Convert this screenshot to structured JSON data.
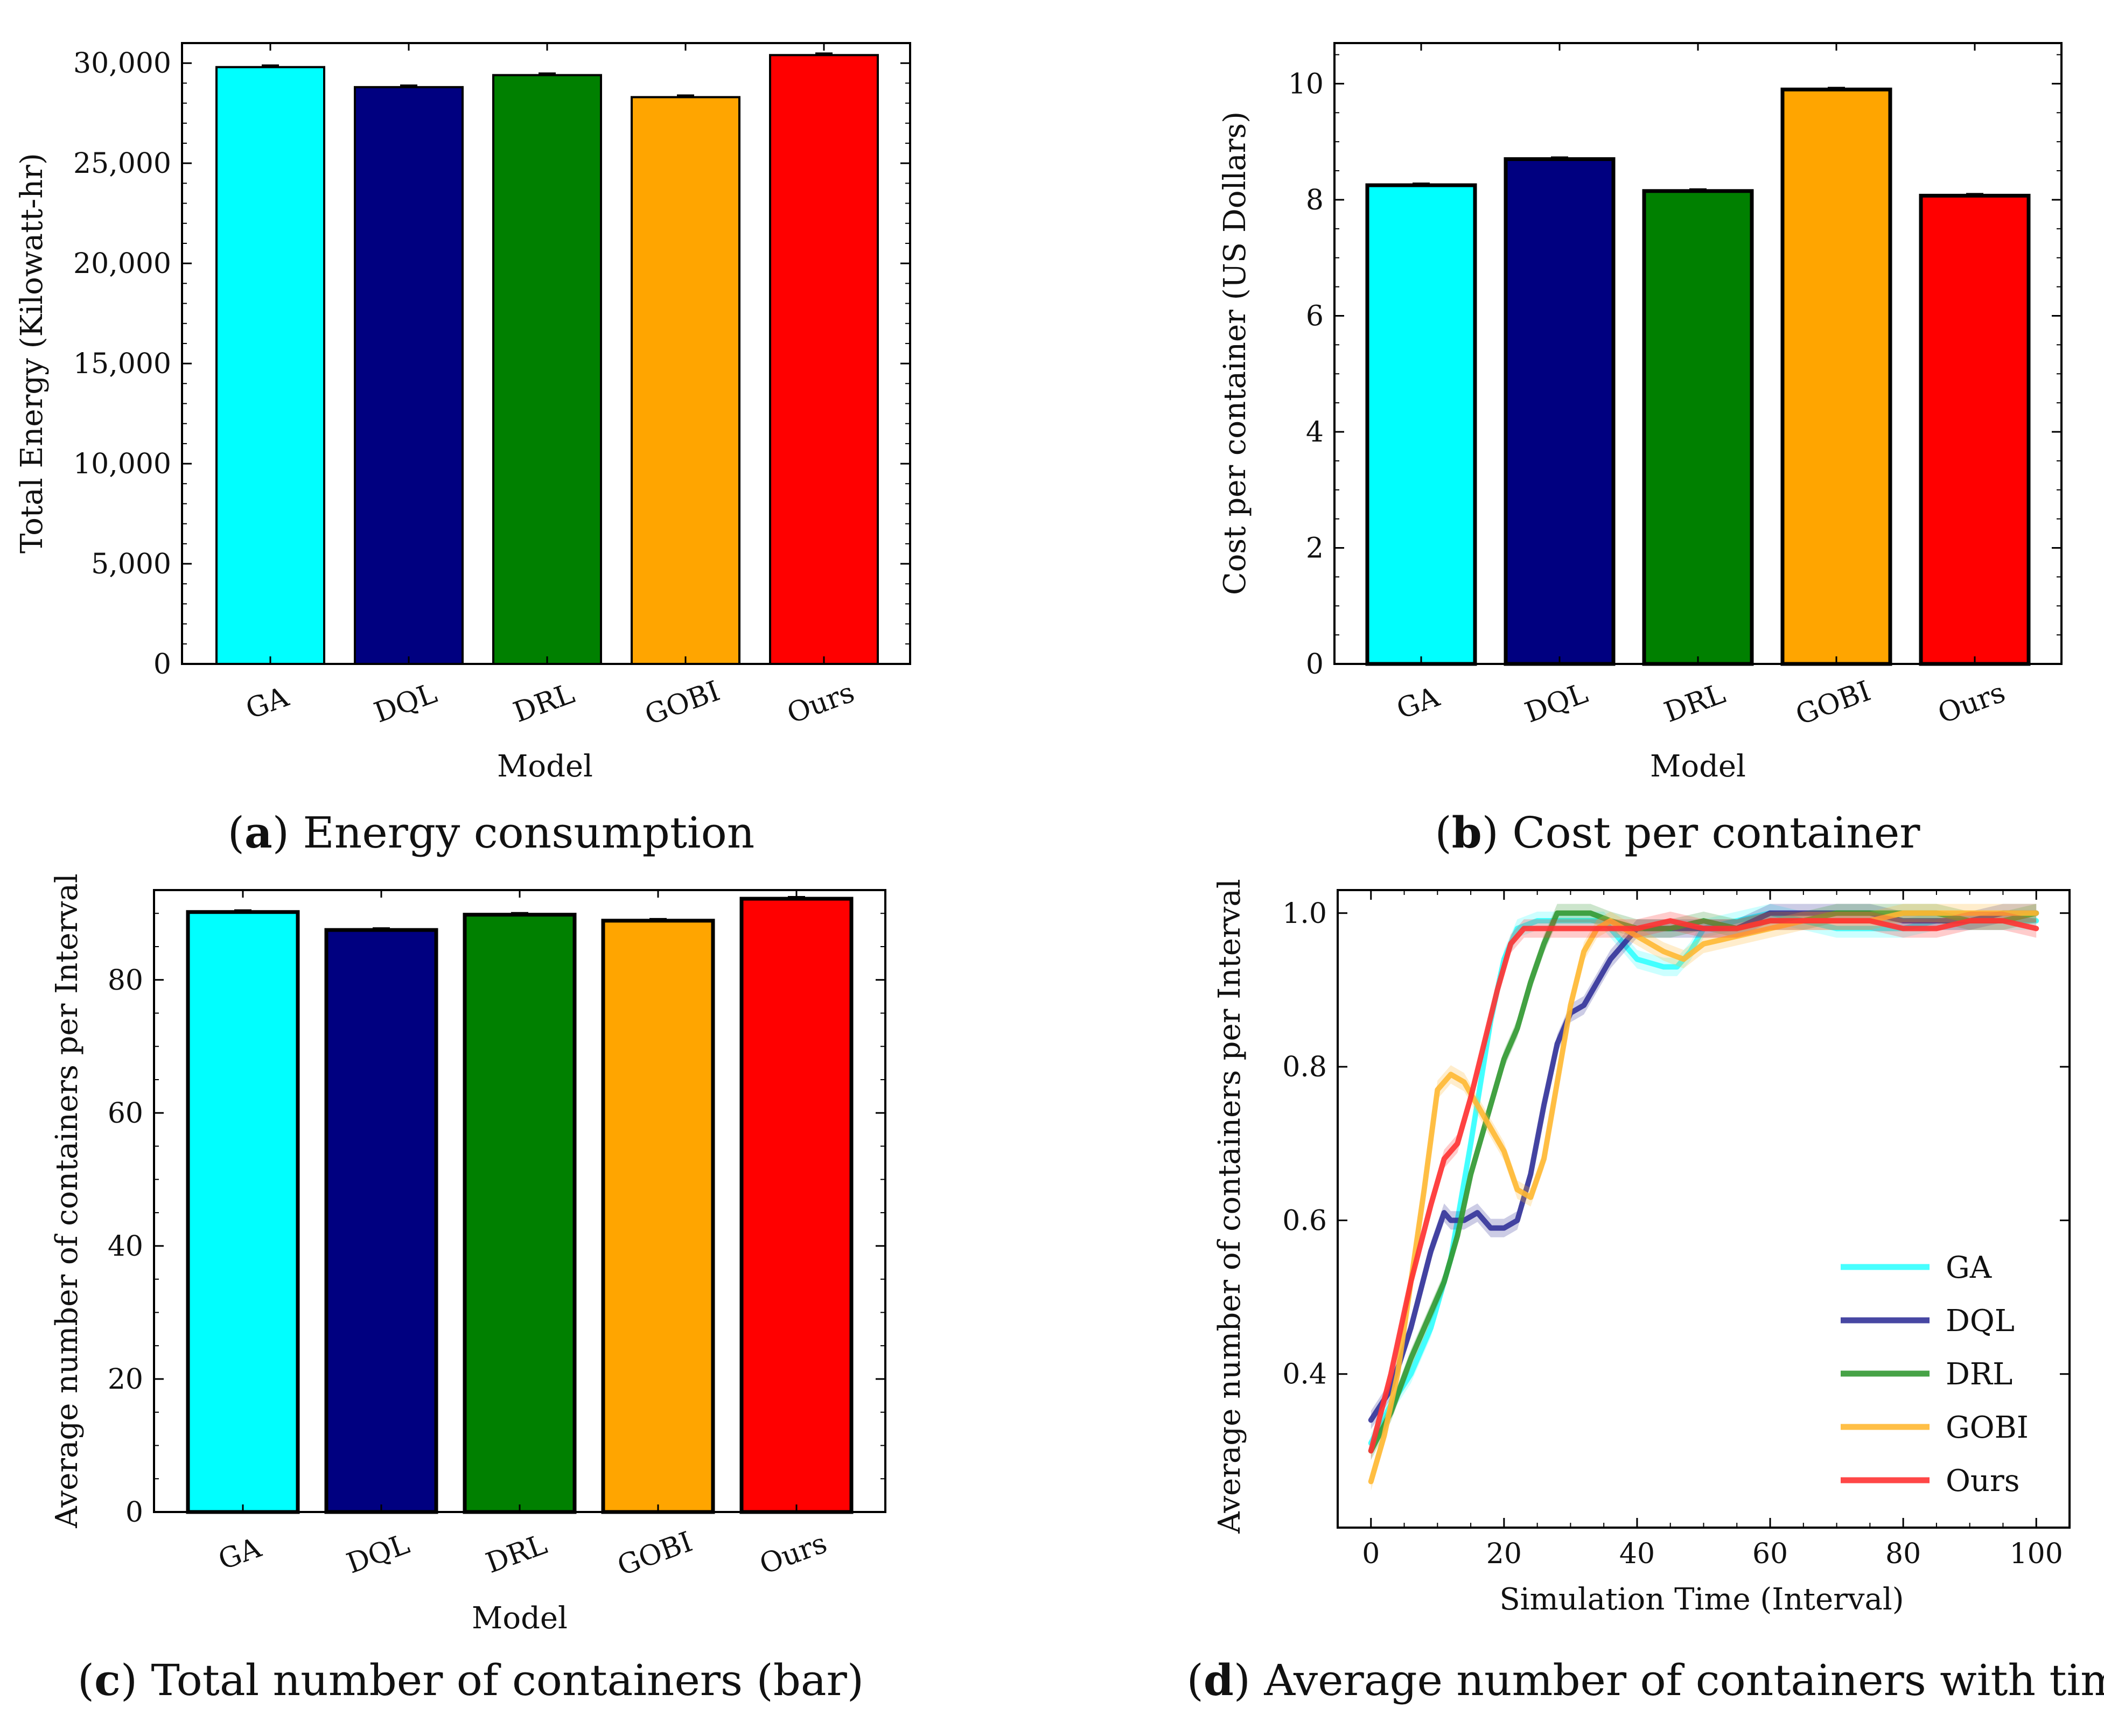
{
  "chart_data": [
    {
      "type": "bar",
      "panel": "a",
      "caption_letter": "a",
      "caption_text": "Energy consumption",
      "categories": [
        "GA",
        "DQL",
        "DRL",
        "GOBI",
        "Ours"
      ],
      "values": [
        29800,
        28800,
        29400,
        28300,
        30400
      ],
      "colors": [
        "#00ffff",
        "#000080",
        "#008000",
        "#ffa500",
        "#ff0000"
      ],
      "xlabel": "Model",
      "ylabel": "Total Energy (Kilowatt-hr)",
      "ylim": [
        0,
        31000
      ],
      "yticks": [
        0,
        5000,
        10000,
        15000,
        20000,
        25000,
        30000
      ],
      "ytick_labels": [
        "0",
        "5,000",
        "10,000",
        "15,000",
        "20,000",
        "25,000",
        "30,000"
      ],
      "ymin_ticks": [
        1000,
        2000,
        3000,
        4000,
        6000,
        7000,
        8000,
        9000,
        11000,
        12000,
        13000,
        14000,
        16000,
        17000,
        18000,
        19000,
        21000,
        22000,
        23000,
        24000,
        26000,
        27000,
        28000,
        29000
      ]
    },
    {
      "type": "bar",
      "panel": "b",
      "caption_letter": "b",
      "caption_text": "Cost per container",
      "categories": [
        "GA",
        "DQL",
        "DRL",
        "GOBI",
        "Ours"
      ],
      "values": [
        8.25,
        8.7,
        8.15,
        9.9,
        8.07
      ],
      "colors": [
        "#00ffff",
        "#000080",
        "#008000",
        "#ffa500",
        "#ff0000"
      ],
      "xlabel": "Model",
      "ylabel": "Cost per container (US Dollars)",
      "ylim": [
        0,
        10.7
      ],
      "yticks": [
        0,
        2,
        4,
        6,
        8,
        10
      ],
      "ytick_labels": [
        "0",
        "2",
        "4",
        "6",
        "8",
        "10"
      ],
      "ymin_ticks": [
        0.5,
        1,
        1.5,
        2.5,
        3,
        3.5,
        4.5,
        5,
        5.5,
        6.5,
        7,
        7.5,
        8.5,
        9,
        9.5,
        10.5
      ]
    },
    {
      "type": "bar",
      "panel": "c",
      "caption_letter": "c",
      "caption_text": "Total number of containers (bar)",
      "categories": [
        "GA",
        "DQL",
        "DRL",
        "GOBI",
        "Ours"
      ],
      "values": [
        90.2,
        87.5,
        89.8,
        88.9,
        92.2
      ],
      "colors": [
        "#00ffff",
        "#000080",
        "#008000",
        "#ffa500",
        "#ff0000"
      ],
      "xlabel": "Model",
      "ylabel": "Average number of containers per Interval",
      "ylim": [
        0,
        93.5
      ],
      "yticks": [
        0,
        20,
        40,
        60,
        80
      ],
      "ytick_labels": [
        "0",
        "20",
        "40",
        "60",
        "80"
      ],
      "ymin_ticks": [
        5,
        10,
        15,
        25,
        30,
        35,
        45,
        50,
        55,
        65,
        70,
        75,
        85,
        90
      ]
    },
    {
      "type": "line",
      "panel": "d",
      "caption_letter": "d",
      "caption_text": "Average number of containers with time",
      "xlabel": "Simulation Time (Interval)",
      "ylabel": "Average number of containers per Interval",
      "xlim": [
        -5,
        105
      ],
      "ylim": [
        0.2,
        1.03
      ],
      "xticks": [
        0,
        20,
        40,
        60,
        80,
        100
      ],
      "xtick_labels": [
        "0",
        "20",
        "40",
        "60",
        "80",
        "100"
      ],
      "yticks": [
        0.4,
        0.6,
        0.8,
        1.0
      ],
      "ytick_labels": [
        "0.4",
        "0.6",
        "0.8",
        "1.0"
      ],
      "legend_position": "lower-right",
      "series": [
        {
          "name": "GA",
          "color": "#33ffff",
          "x": [
            0,
            3,
            6,
            9,
            12,
            15,
            18,
            20,
            22,
            25,
            30,
            35,
            40,
            44,
            46,
            48,
            50,
            55,
            60,
            65,
            70,
            75,
            80,
            85,
            90,
            95,
            100
          ],
          "y": [
            0.31,
            0.36,
            0.4,
            0.46,
            0.55,
            0.7,
            0.86,
            0.94,
            0.98,
            0.99,
            0.99,
            0.99,
            0.94,
            0.93,
            0.93,
            0.95,
            0.98,
            0.99,
            1.0,
            0.99,
            0.98,
            0.98,
            0.98,
            0.99,
            0.99,
            0.99,
            0.99
          ]
        },
        {
          "name": "DQL",
          "color": "#333399",
          "x": [
            0,
            3,
            6,
            9,
            11,
            12,
            14,
            16,
            18,
            20,
            22,
            24,
            26,
            28,
            30,
            32,
            34,
            36,
            38,
            40,
            45,
            50,
            55,
            60,
            65,
            70,
            75,
            80,
            85,
            90,
            95,
            100
          ],
          "y": [
            0.34,
            0.38,
            0.46,
            0.56,
            0.61,
            0.6,
            0.6,
            0.61,
            0.59,
            0.59,
            0.6,
            0.66,
            0.75,
            0.83,
            0.87,
            0.88,
            0.91,
            0.94,
            0.96,
            0.98,
            0.98,
            0.98,
            0.98,
            1.0,
            1.0,
            1.0,
            1.0,
            0.99,
            0.99,
            0.99,
            1.0,
            1.0
          ]
        },
        {
          "name": "DRL",
          "color": "#339933",
          "x": [
            0,
            3,
            6,
            9,
            11,
            13,
            15,
            18,
            20,
            22,
            24,
            26,
            28,
            30,
            33,
            36,
            40,
            45,
            50,
            55,
            60,
            65,
            70,
            75,
            80,
            85,
            90,
            95,
            100
          ],
          "y": [
            0.3,
            0.35,
            0.42,
            0.48,
            0.52,
            0.58,
            0.66,
            0.75,
            0.81,
            0.85,
            0.91,
            0.96,
            1.0,
            1.0,
            1.0,
            0.99,
            0.98,
            0.98,
            0.99,
            0.98,
            0.99,
            0.99,
            1.0,
            1.0,
            1.0,
            1.0,
            0.99,
            0.99,
            1.0
          ]
        },
        {
          "name": "GOBI",
          "color": "#ffb833",
          "x": [
            0,
            2,
            4,
            6,
            8,
            10,
            12,
            14,
            16,
            18,
            20,
            22,
            24,
            26,
            28,
            30,
            32,
            34,
            36,
            40,
            44,
            47,
            50,
            55,
            60,
            65,
            70,
            75,
            80,
            85,
            90,
            95,
            100
          ],
          "y": [
            0.26,
            0.32,
            0.4,
            0.52,
            0.64,
            0.77,
            0.79,
            0.78,
            0.75,
            0.72,
            0.69,
            0.64,
            0.63,
            0.68,
            0.78,
            0.88,
            0.95,
            0.98,
            0.99,
            0.97,
            0.95,
            0.94,
            0.96,
            0.97,
            0.98,
            0.99,
            0.99,
            0.99,
            1.0,
            1.0,
            1.0,
            1.0,
            1.0
          ]
        },
        {
          "name": "Ours",
          "color": "#ff3333",
          "x": [
            0,
            3,
            6,
            9,
            11,
            13,
            15,
            17,
            19,
            21,
            23,
            25,
            30,
            35,
            40,
            45,
            50,
            55,
            60,
            65,
            70,
            75,
            80,
            85,
            90,
            95,
            100
          ],
          "y": [
            0.3,
            0.4,
            0.52,
            0.62,
            0.68,
            0.7,
            0.76,
            0.83,
            0.9,
            0.96,
            0.98,
            0.98,
            0.98,
            0.98,
            0.98,
            0.99,
            0.98,
            0.98,
            0.99,
            0.99,
            0.99,
            0.99,
            0.98,
            0.98,
            0.99,
            0.99,
            0.98
          ]
        }
      ]
    }
  ]
}
